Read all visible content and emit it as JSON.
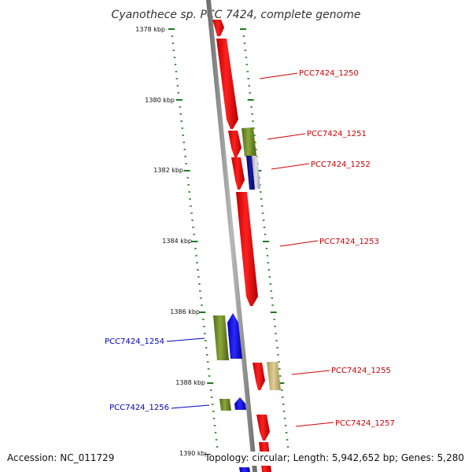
{
  "title": "Cyanothece sp. PCC 7424, complete genome",
  "footer": {
    "accession": "Accession: NC_011729",
    "summary": "Topology: circular; Length: 5,942,652 bp; Genes: 5,280"
  },
  "colors": {
    "backbone": "#8c8c8c",
    "tick": "#1e7a1e",
    "forward_label": "#cc0000",
    "reverse_label": "#0000bb",
    "red_gene": "#ff0000",
    "olive_gene": "#6b8e23",
    "blue_gene": "#0000ff",
    "navy_gene": "#0a0a80",
    "light_gray_gene": "#c0c0cc",
    "khaki_gene": "#c8b878"
  },
  "axis": {
    "unit": "kbp",
    "ticks": [
      {
        "kbp": 1378,
        "label": "1378 kbp"
      },
      {
        "kbp": 1380,
        "label": "1380 kbp"
      },
      {
        "kbp": 1382,
        "label": "1382 kbp"
      },
      {
        "kbp": 1384,
        "label": "1384 kbp"
      },
      {
        "kbp": 1386,
        "label": "1386 kbp"
      },
      {
        "kbp": 1388,
        "label": "1388 kbp"
      },
      {
        "kbp": 1390,
        "label": "1390 kbp"
      }
    ]
  },
  "gene_labels": [
    {
      "id": "PCC7424_1250",
      "strand": "forward"
    },
    {
      "id": "PCC7424_1251",
      "strand": "forward"
    },
    {
      "id": "PCC7424_1252",
      "strand": "forward"
    },
    {
      "id": "PCC7424_1253",
      "strand": "forward"
    },
    {
      "id": "PCC7424_1254",
      "strand": "reverse"
    },
    {
      "id": "PCC7424_1255",
      "strand": "forward"
    },
    {
      "id": "PCC7424_1256",
      "strand": "reverse"
    },
    {
      "id": "PCC7424_1257",
      "strand": "forward"
    }
  ]
}
